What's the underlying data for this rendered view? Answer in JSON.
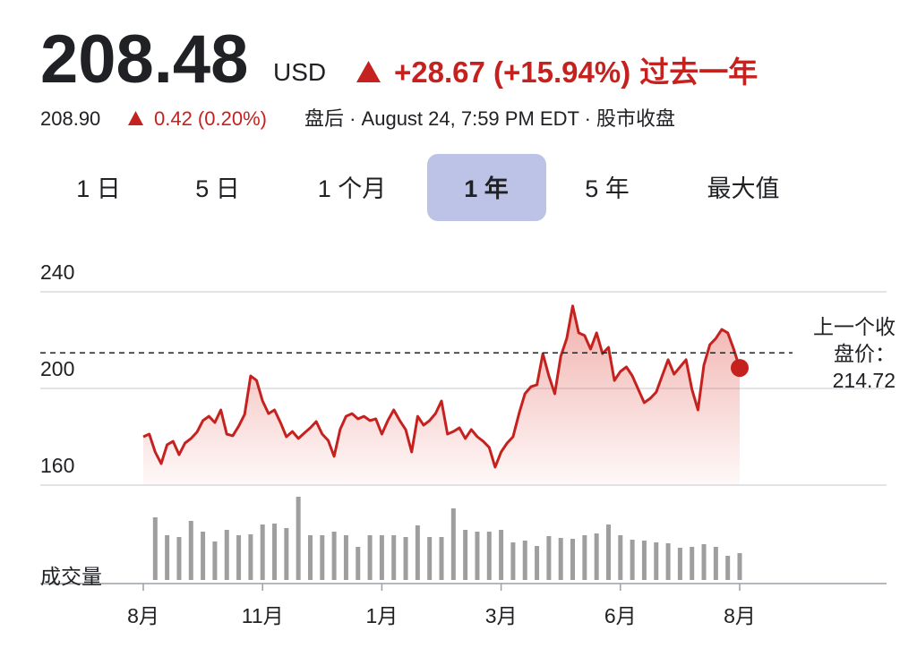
{
  "header": {
    "price": "208.48",
    "currency": "USD",
    "change": "+28.67 (+15.94%)",
    "period": "过去一年",
    "after_hours_price": "208.90",
    "after_hours_change": "0.42 (0.20%)",
    "after_hours_note": "盘后 · August 24, 7:59 PM EDT · 股市收盘"
  },
  "tabs": {
    "labels": [
      "1 日",
      "5 日",
      "1 个月",
      "1 年",
      "5 年",
      "最大值"
    ],
    "selected": 3
  },
  "chart_data": [
    {
      "type": "line",
      "color": "#c5221f",
      "categories": [
        "8月",
        null,
        null,
        null,
        null,
        null,
        null,
        null,
        null,
        null,
        null,
        null,
        null,
        null,
        null,
        null,
        null,
        null,
        null,
        null,
        "11月",
        null,
        null,
        null,
        null,
        null,
        null,
        null,
        null,
        null,
        null,
        null,
        null,
        null,
        null,
        null,
        null,
        null,
        null,
        null,
        "1月",
        null,
        null,
        null,
        null,
        null,
        null,
        null,
        null,
        null,
        null,
        null,
        null,
        null,
        null,
        null,
        null,
        null,
        null,
        null,
        "3月",
        null,
        null,
        null,
        null,
        null,
        null,
        null,
        null,
        null,
        null,
        null,
        null,
        null,
        null,
        null,
        null,
        null,
        null,
        null,
        "6月",
        null,
        null,
        null,
        null,
        null,
        null,
        null,
        null,
        null,
        null,
        null,
        null,
        null,
        null,
        null,
        null,
        null,
        null,
        null,
        "8月"
      ],
      "values": [
        180,
        181.1,
        173.7,
        168.9,
        176.7,
        178.1,
        172.6,
        177.4,
        179.3,
        181.9,
        186.7,
        188.5,
        185.9,
        191.1,
        181.1,
        180.4,
        184.4,
        189.3,
        205.2,
        203.3,
        194.8,
        189.6,
        191.1,
        185.9,
        180,
        182.2,
        179.3,
        181.5,
        183.7,
        186.3,
        181.1,
        178.5,
        171.9,
        183,
        188.5,
        189.6,
        187.4,
        188.5,
        186.7,
        187.4,
        181.1,
        186.7,
        191.1,
        186.7,
        183,
        173.7,
        188.5,
        184.8,
        186.7,
        189.6,
        194.8,
        181.1,
        182.2,
        183.7,
        179.3,
        183,
        180,
        178.1,
        175.6,
        167.4,
        173.7,
        177.4,
        180,
        189.6,
        197.8,
        200.7,
        201.5,
        214.4,
        205.2,
        197.8,
        213.3,
        220.7,
        234.1,
        223,
        221.9,
        216.3,
        223,
        214.4,
        217,
        203.3,
        207,
        208.9,
        205.2,
        199.6,
        194.1,
        195.9,
        198.5,
        205.2,
        211.9,
        205.9,
        208.9,
        211.9,
        199.6,
        191.1,
        209.6,
        218.1,
        220.7,
        224.4,
        223,
        216.3,
        208.48
      ],
      "ylim": [
        160,
        240
      ],
      "yticks": [
        160,
        200,
        240
      ],
      "grid": true,
      "previous_close": 214.72,
      "previous_close_label": "上一个收盘价："
    },
    {
      "type": "bar",
      "title": "成交量",
      "color": "#9e9e9e",
      "values": [
        70,
        50,
        48,
        66,
        54,
        43,
        56,
        50,
        51,
        62,
        63,
        58,
        93,
        50,
        50,
        54,
        50,
        37,
        50,
        50,
        50,
        48,
        61,
        48,
        48,
        80,
        56,
        54,
        54,
        56,
        42,
        44,
        38,
        49,
        47,
        46,
        50,
        52,
        62,
        50,
        45,
        44,
        42,
        41,
        36,
        37,
        40,
        37,
        27,
        30
      ]
    }
  ]
}
